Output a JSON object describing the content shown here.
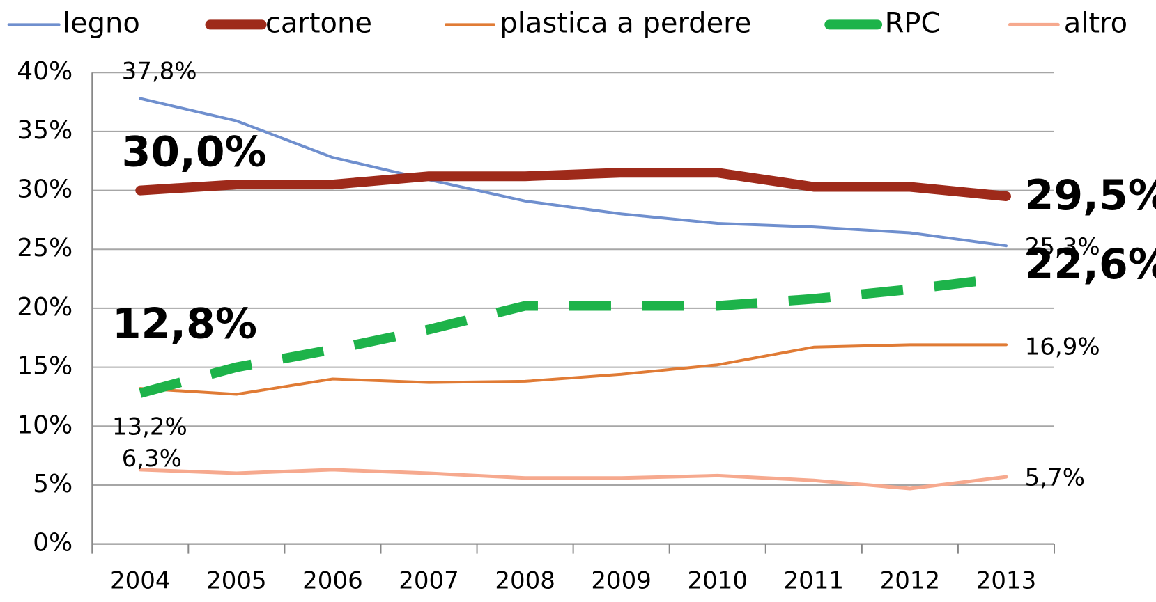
{
  "chart_data": {
    "type": "line",
    "categories": [
      "2004",
      "2005",
      "2006",
      "2007",
      "2008",
      "2009",
      "2010",
      "2011",
      "2012",
      "2013"
    ],
    "series": [
      {
        "name": "legno",
        "color": "#6f8fce",
        "values": [
          37.8,
          35.9,
          32.8,
          30.9,
          29.1,
          28.0,
          27.2,
          26.9,
          26.4,
          25.3
        ],
        "value_labels": [
          "37,8%",
          null,
          null,
          null,
          null,
          null,
          null,
          null,
          null,
          "25,3%"
        ]
      },
      {
        "name": "cartone",
        "color": "#9e2a1a",
        "values": [
          30.0,
          30.5,
          30.5,
          31.2,
          31.2,
          31.5,
          31.5,
          30.3,
          30.3,
          29.5
        ],
        "value_labels": [
          "30,0%",
          null,
          null,
          null,
          null,
          null,
          null,
          null,
          null,
          "29,5%"
        ]
      },
      {
        "name": "plastica a perdere",
        "color": "#e07b35",
        "values": [
          13.2,
          12.7,
          14.0,
          13.7,
          13.8,
          14.4,
          15.2,
          16.7,
          16.9,
          16.9
        ],
        "value_labels": [
          "13,2%",
          null,
          null,
          null,
          null,
          null,
          null,
          null,
          null,
          "16,9%"
        ]
      },
      {
        "name": "RPC",
        "color": "#1db34a",
        "values": [
          12.8,
          15.0,
          16.5,
          18.2,
          20.2,
          20.2,
          20.2,
          20.8,
          21.6,
          22.6
        ],
        "value_labels": [
          "12,8%",
          null,
          null,
          null,
          null,
          null,
          null,
          null,
          null,
          "22,6%"
        ]
      },
      {
        "name": "altro",
        "color": "#f6a98e",
        "values": [
          6.3,
          6.0,
          6.3,
          6.0,
          5.6,
          5.6,
          5.8,
          5.4,
          4.7,
          5.7
        ],
        "value_labels": [
          "6,3%",
          null,
          null,
          null,
          null,
          null,
          null,
          null,
          null,
          "5,7%"
        ]
      }
    ],
    "ylim": [
      0,
      40
    ],
    "yticks": [
      {
        "value": 0,
        "label": "0%"
      },
      {
        "value": 5,
        "label": "5%"
      },
      {
        "value": 10,
        "label": "10%"
      },
      {
        "value": 15,
        "label": "15%"
      },
      {
        "value": 20,
        "label": "20%"
      },
      {
        "value": 25,
        "label": "25%"
      },
      {
        "value": 30,
        "label": "30%"
      },
      {
        "value": 35,
        "label": "35%"
      },
      {
        "value": 40,
        "label": "40%"
      }
    ],
    "grid": true,
    "legend": "top"
  }
}
